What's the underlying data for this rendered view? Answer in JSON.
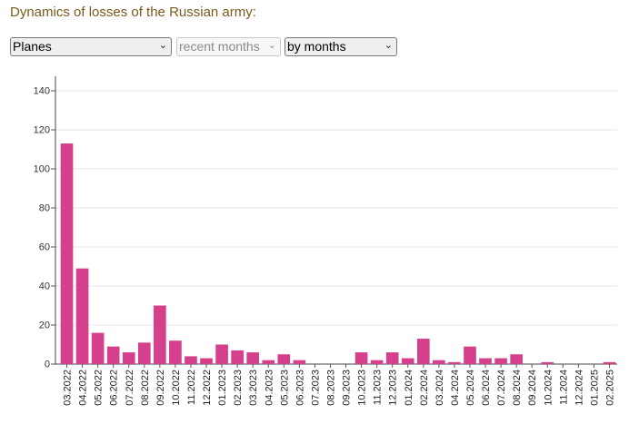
{
  "page": {
    "title": "Dynamics of losses of the Russian army:"
  },
  "controls": {
    "category": "Planes",
    "period": "recent months",
    "grouping": "by months"
  },
  "chart_data": {
    "type": "bar",
    "categories": [
      "03.2022",
      "04.2022",
      "05.2022",
      "06.2022",
      "07.2022",
      "08.2022",
      "09.2022",
      "10.2022",
      "11.2022",
      "12.2022",
      "01.2023",
      "02.2023",
      "03.2023",
      "04.2023",
      "05.2023",
      "06.2023",
      "07.2023",
      "08.2023",
      "09.2023",
      "10.2023",
      "11.2023",
      "12.2023",
      "01.2024",
      "02.2024",
      "03.2024",
      "04.2024",
      "05.2024",
      "06.2024",
      "07.2024",
      "08.2024",
      "09.2024",
      "10.2024",
      "11.2024",
      "12.2024",
      "01.2025",
      "02.2025"
    ],
    "values": [
      113,
      49,
      16,
      9,
      6,
      11,
      30,
      12,
      4,
      3,
      10,
      7,
      6,
      2,
      5,
      2,
      0,
      0,
      0,
      6,
      2,
      6,
      3,
      13,
      2,
      1,
      9,
      3,
      3,
      5,
      0,
      1,
      0,
      0,
      0,
      1
    ],
    "yticks": [
      0,
      20,
      40,
      60,
      80,
      100,
      120,
      140
    ],
    "ylim": [
      0,
      140
    ],
    "grid": true,
    "bar_color": "#d63f8c",
    "title": "",
    "xlabel": "",
    "ylabel": ""
  }
}
